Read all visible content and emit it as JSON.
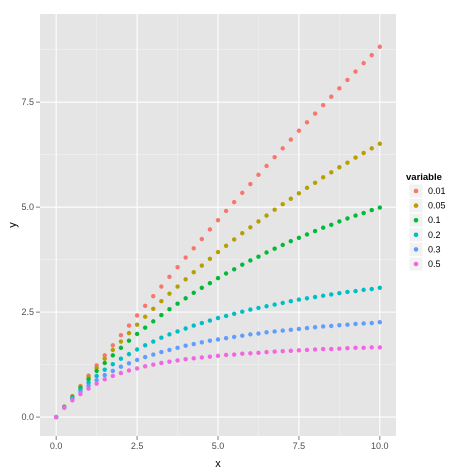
{
  "chart_data": {
    "type": "scatter",
    "xlabel": "x",
    "ylabel": "y",
    "xlim": [
      -0.5,
      10.5
    ],
    "ylim": [
      -0.45,
      9.6
    ],
    "xticks": [
      0.0,
      2.5,
      5.0,
      7.5,
      10.0
    ],
    "xtick_labels": [
      "0.0",
      "2.5",
      "5.0",
      "7.5",
      "10.0"
    ],
    "yticks": [
      0.0,
      2.5,
      5.0,
      7.5
    ],
    "ytick_labels": [
      "0.0",
      "2.5",
      "5.0",
      "7.5"
    ],
    "grid": true,
    "legend_title": "variable",
    "legend_position": "right",
    "x": [
      0.0,
      0.25,
      0.5,
      0.75,
      1.0,
      1.25,
      1.5,
      1.75,
      2.0,
      2.25,
      2.5,
      2.75,
      3.0,
      3.25,
      3.5,
      3.75,
      4.0,
      4.25,
      4.5,
      4.75,
      5.0,
      5.25,
      5.5,
      5.75,
      6.0,
      6.25,
      6.5,
      6.75,
      7.0,
      7.25,
      7.5,
      7.75,
      8.0,
      8.25,
      8.5,
      8.75,
      9.0,
      9.25,
      9.5,
      9.75,
      10.0
    ],
    "series": [
      {
        "name": "0.01",
        "color": "#F8766D",
        "values": [
          0.0,
          0.25,
          0.5,
          0.74,
          0.99,
          1.23,
          1.47,
          1.71,
          1.95,
          2.18,
          2.42,
          2.65,
          2.88,
          3.11,
          3.34,
          3.57,
          3.8,
          4.02,
          4.24,
          4.47,
          4.69,
          4.91,
          5.12,
          5.34,
          5.55,
          5.77,
          5.98,
          6.19,
          6.4,
          6.61,
          6.82,
          7.02,
          7.23,
          7.43,
          7.63,
          7.83,
          8.03,
          8.23,
          8.43,
          8.62,
          8.82
        ]
      },
      {
        "name": "0.05",
        "color": "#B79F00",
        "values": [
          0.0,
          0.25,
          0.49,
          0.72,
          0.95,
          1.17,
          1.39,
          1.6,
          1.8,
          2.0,
          2.2,
          2.39,
          2.58,
          2.76,
          2.94,
          3.11,
          3.28,
          3.45,
          3.61,
          3.77,
          3.93,
          4.08,
          4.23,
          4.38,
          4.52,
          4.66,
          4.8,
          4.94,
          5.07,
          5.2,
          5.33,
          5.46,
          5.58,
          5.71,
          5.83,
          5.95,
          6.06,
          6.18,
          6.29,
          6.4,
          6.51
        ]
      },
      {
        "name": "0.1",
        "color": "#00BA38",
        "values": [
          0.0,
          0.24,
          0.47,
          0.69,
          0.9,
          1.1,
          1.29,
          1.47,
          1.65,
          1.82,
          1.98,
          2.13,
          2.28,
          2.43,
          2.57,
          2.7,
          2.83,
          2.96,
          3.08,
          3.19,
          3.31,
          3.42,
          3.52,
          3.63,
          3.73,
          3.82,
          3.92,
          4.01,
          4.1,
          4.19,
          4.27,
          4.35,
          4.43,
          4.51,
          4.58,
          4.66,
          4.73,
          4.8,
          4.86,
          4.93,
          4.99
        ]
      },
      {
        "name": "0.2",
        "color": "#00BFC4",
        "values": [
          0.0,
          0.24,
          0.45,
          0.65,
          0.82,
          0.98,
          1.13,
          1.26,
          1.39,
          1.5,
          1.61,
          1.71,
          1.8,
          1.89,
          1.97,
          2.04,
          2.11,
          2.18,
          2.24,
          2.3,
          2.36,
          2.41,
          2.46,
          2.51,
          2.56,
          2.6,
          2.64,
          2.68,
          2.72,
          2.76,
          2.8,
          2.83,
          2.86,
          2.89,
          2.92,
          2.95,
          2.98,
          3.0,
          3.03,
          3.05,
          3.08
        ]
      },
      {
        "name": "0.3",
        "color": "#619CFF",
        "values": [
          0.0,
          0.23,
          0.43,
          0.6,
          0.75,
          0.88,
          1.0,
          1.1,
          1.2,
          1.28,
          1.36,
          1.43,
          1.49,
          1.55,
          1.6,
          1.65,
          1.7,
          1.74,
          1.78,
          1.82,
          1.85,
          1.88,
          1.91,
          1.94,
          1.97,
          1.99,
          2.02,
          2.04,
          2.06,
          2.08,
          2.1,
          2.12,
          2.14,
          2.16,
          2.17,
          2.19,
          2.2,
          2.22,
          2.23,
          2.24,
          2.26
        ]
      },
      {
        "name": "0.5",
        "color": "#F564E3",
        "values": [
          0.0,
          0.22,
          0.4,
          0.55,
          0.68,
          0.8,
          0.9,
          0.98,
          1.05,
          1.11,
          1.16,
          1.21,
          1.25,
          1.29,
          1.32,
          1.35,
          1.38,
          1.4,
          1.42,
          1.44,
          1.46,
          1.48,
          1.49,
          1.51,
          1.52,
          1.53,
          1.55,
          1.56,
          1.57,
          1.58,
          1.59,
          1.6,
          1.61,
          1.62,
          1.62,
          1.63,
          1.64,
          1.65,
          1.65,
          1.66,
          1.66
        ]
      }
    ]
  }
}
